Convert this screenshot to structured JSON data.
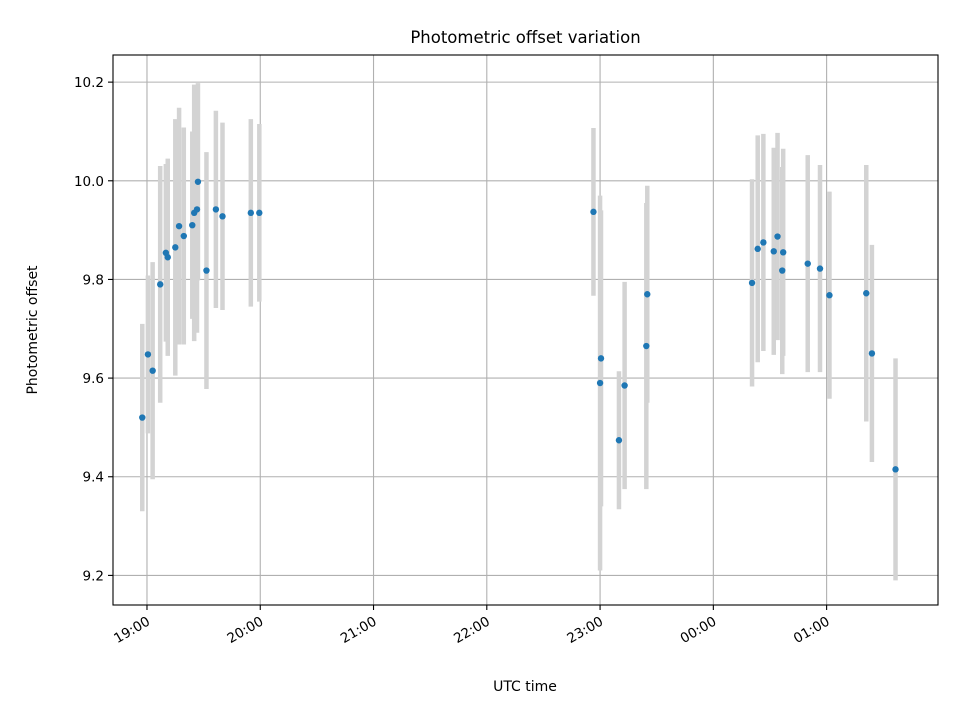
{
  "chart_data": {
    "type": "scatter",
    "title": "Photometric offset variation",
    "xlabel": "UTC time",
    "ylabel": "Photometric offset",
    "grid": true,
    "marker_color": "#1f77b4",
    "errorbar_color": "#d3d3d3",
    "xlim": [
      "18:42",
      "1:59"
    ],
    "ylim": [
      9.14,
      10.255
    ],
    "x_ticks": [
      "19:00",
      "20:00",
      "21:00",
      "22:00",
      "23:00",
      "00:00",
      "01:00"
    ],
    "y_ticks": [
      "9.2",
      "9.4",
      "9.6",
      "9.8",
      "10.0",
      "10.2"
    ],
    "points": [
      {
        "x": "18:57:30",
        "y": 9.52,
        "err": 0.19
      },
      {
        "x": "19:00:30",
        "y": 9.648,
        "err": 0.16
      },
      {
        "x": "19:03:00",
        "y": 9.615,
        "err": 0.22
      },
      {
        "x": "19:07:00",
        "y": 9.79,
        "err": 0.24
      },
      {
        "x": "19:10:00",
        "y": 9.854,
        "err": 0.18
      },
      {
        "x": "19:11:00",
        "y": 9.845,
        "err": 0.2
      },
      {
        "x": "19:15:00",
        "y": 9.865,
        "err": 0.26
      },
      {
        "x": "19:17:00",
        "y": 9.908,
        "err": 0.24
      },
      {
        "x": "19:19:30",
        "y": 9.888,
        "err": 0.22
      },
      {
        "x": "19:24:00",
        "y": 9.91,
        "err": 0.19
      },
      {
        "x": "19:25:00",
        "y": 9.935,
        "err": 0.26
      },
      {
        "x": "19:26:30",
        "y": 9.942,
        "err": 0.25
      },
      {
        "x": "19:27:00",
        "y": 9.998,
        "err": 0.2
      },
      {
        "x": "19:31:30",
        "y": 9.818,
        "err": 0.24
      },
      {
        "x": "19:36:30",
        "y": 9.942,
        "err": 0.2
      },
      {
        "x": "19:40:00",
        "y": 9.928,
        "err": 0.19
      },
      {
        "x": "19:55:00",
        "y": 9.935,
        "err": 0.19
      },
      {
        "x": "19:59:30",
        "y": 9.935,
        "err": 0.18
      },
      {
        "x": "22:56:30",
        "y": 9.937,
        "err": 0.17
      },
      {
        "x": "23:00:00",
        "y": 9.59,
        "err": 0.38
      },
      {
        "x": "23:00:30",
        "y": 9.64,
        "err": 0.3
      },
      {
        "x": "23:10:00",
        "y": 9.474,
        "err": 0.14
      },
      {
        "x": "23:13:00",
        "y": 9.585,
        "err": 0.21
      },
      {
        "x": "23:24:30",
        "y": 9.665,
        "err": 0.29
      },
      {
        "x": "23:25:00",
        "y": 9.77,
        "err": 0.22
      },
      {
        "x": "0:20:30",
        "y": 9.793,
        "err": 0.21
      },
      {
        "x": "0:23:30",
        "y": 9.862,
        "err": 0.23
      },
      {
        "x": "0:26:30",
        "y": 9.875,
        "err": 0.22
      },
      {
        "x": "0:32:00",
        "y": 9.857,
        "err": 0.21
      },
      {
        "x": "0:34:00",
        "y": 9.887,
        "err": 0.21
      },
      {
        "x": "0:36:30",
        "y": 9.818,
        "err": 0.21
      },
      {
        "x": "0:37:00",
        "y": 9.855,
        "err": 0.21
      },
      {
        "x": "0:50:00",
        "y": 9.832,
        "err": 0.22
      },
      {
        "x": "0:56:30",
        "y": 9.822,
        "err": 0.21
      },
      {
        "x": "1:01:30",
        "y": 9.768,
        "err": 0.21
      },
      {
        "x": "1:21:00",
        "y": 9.772,
        "err": 0.26
      },
      {
        "x": "1:24:00",
        "y": 9.65,
        "err": 0.22
      },
      {
        "x": "1:36:30",
        "y": 9.415,
        "err": 0.225
      }
    ]
  }
}
